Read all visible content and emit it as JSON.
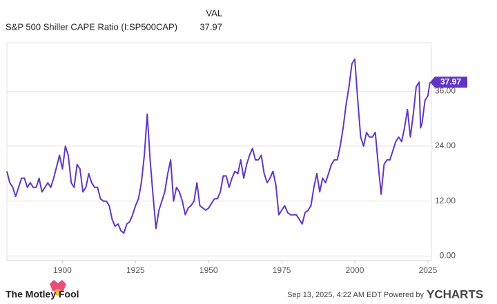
{
  "chart_data": {
    "type": "line",
    "value_header": "VAL",
    "xlim": [
      1881,
      2026.2
    ],
    "xticks": [
      1900,
      1925,
      1950,
      1975,
      2000,
      2025
    ],
    "ylim": [
      -1,
      46.6
    ],
    "yticks": [
      {
        "value": 0,
        "label": "0.00"
      },
      {
        "value": 12,
        "label": "12.00"
      },
      {
        "value": 24,
        "label": "24.00"
      },
      {
        "value": 36,
        "label": "36.00"
      }
    ],
    "grid": true,
    "x": [
      1881,
      1882,
      1883,
      1884,
      1885,
      1886,
      1887,
      1888,
      1889,
      1890,
      1891,
      1892,
      1893,
      1894,
      1895,
      1896,
      1897,
      1898,
      1899,
      1900,
      1901,
      1902,
      1903,
      1904,
      1905,
      1906,
      1907,
      1908,
      1909,
      1910,
      1911,
      1912,
      1913,
      1914,
      1915,
      1916,
      1917,
      1918,
      1919,
      1920,
      1921,
      1922,
      1923,
      1924,
      1925,
      1926,
      1927,
      1928,
      1929,
      1930,
      1931,
      1932,
      1933,
      1934,
      1935,
      1936,
      1937,
      1938,
      1939,
      1940,
      1941,
      1942,
      1943,
      1944,
      1945,
      1946,
      1947,
      1948,
      1949,
      1950,
      1951,
      1952,
      1953,
      1954,
      1955,
      1956,
      1957,
      1958,
      1959,
      1960,
      1961,
      1962,
      1963,
      1964,
      1965,
      1966,
      1967,
      1968,
      1969,
      1970,
      1971,
      1972,
      1973,
      1974,
      1975,
      1976,
      1977,
      1978,
      1979,
      1980,
      1981,
      1982,
      1983,
      1984,
      1985,
      1986,
      1987,
      1988,
      1989,
      1990,
      1991,
      1992,
      1993,
      1994,
      1995,
      1996,
      1997,
      1998,
      1999,
      2000,
      2001,
      2002,
      2003,
      2004,
      2005,
      2006,
      2007,
      2008,
      2009,
      2010,
      2011,
      2012,
      2013,
      2014,
      2015,
      2016,
      2017,
      2018,
      2019,
      2020,
      2021,
      2022,
      2022.5,
      2023,
      2024,
      2025,
      2025.7
    ],
    "series": [
      {
        "name": "S&P 500 Shiller CAPE Ratio (I:SP500CAP)",
        "color": "#6236c2",
        "values": [
          18.5,
          16,
          15,
          13,
          15,
          17,
          17,
          15,
          16,
          15,
          15,
          17,
          14,
          15,
          16,
          15,
          17,
          19.5,
          22,
          19,
          24,
          22,
          16,
          15,
          20,
          19,
          14,
          15,
          18,
          16,
          15,
          15,
          12.5,
          12,
          12,
          11,
          8,
          6.5,
          7,
          5.5,
          5,
          7,
          7.5,
          9,
          11,
          12.5,
          16,
          22,
          31,
          21,
          13,
          6,
          10,
          12,
          14,
          18,
          21,
          12,
          15,
          14,
          12,
          9,
          10.5,
          11,
          12,
          16,
          11,
          10.5,
          10,
          10.5,
          11.5,
          12.5,
          12.5,
          14,
          17.5,
          17.5,
          15,
          17,
          18.5,
          18,
          21,
          17,
          20,
          22,
          23.5,
          21,
          21,
          22,
          18,
          16,
          17,
          18.5,
          15.5,
          9,
          10,
          11,
          9.5,
          9,
          9,
          9,
          8,
          7,
          9.5,
          10,
          11,
          15,
          18,
          14,
          17,
          16,
          18,
          20,
          21,
          21,
          24,
          28,
          33,
          37,
          42,
          43,
          34,
          26,
          24,
          27,
          26,
          26,
          27,
          20,
          13.5,
          20,
          21,
          21,
          23,
          25,
          26,
          25,
          28,
          32,
          26,
          31,
          37,
          38,
          28,
          29,
          34,
          35,
          37.97
        ]
      }
    ]
  },
  "footer": {
    "brand": "The Motley Fool",
    "timestamp": "Sep 13, 2025, 4:22 AM EDT Powered by",
    "provider": "YCHARTS"
  }
}
